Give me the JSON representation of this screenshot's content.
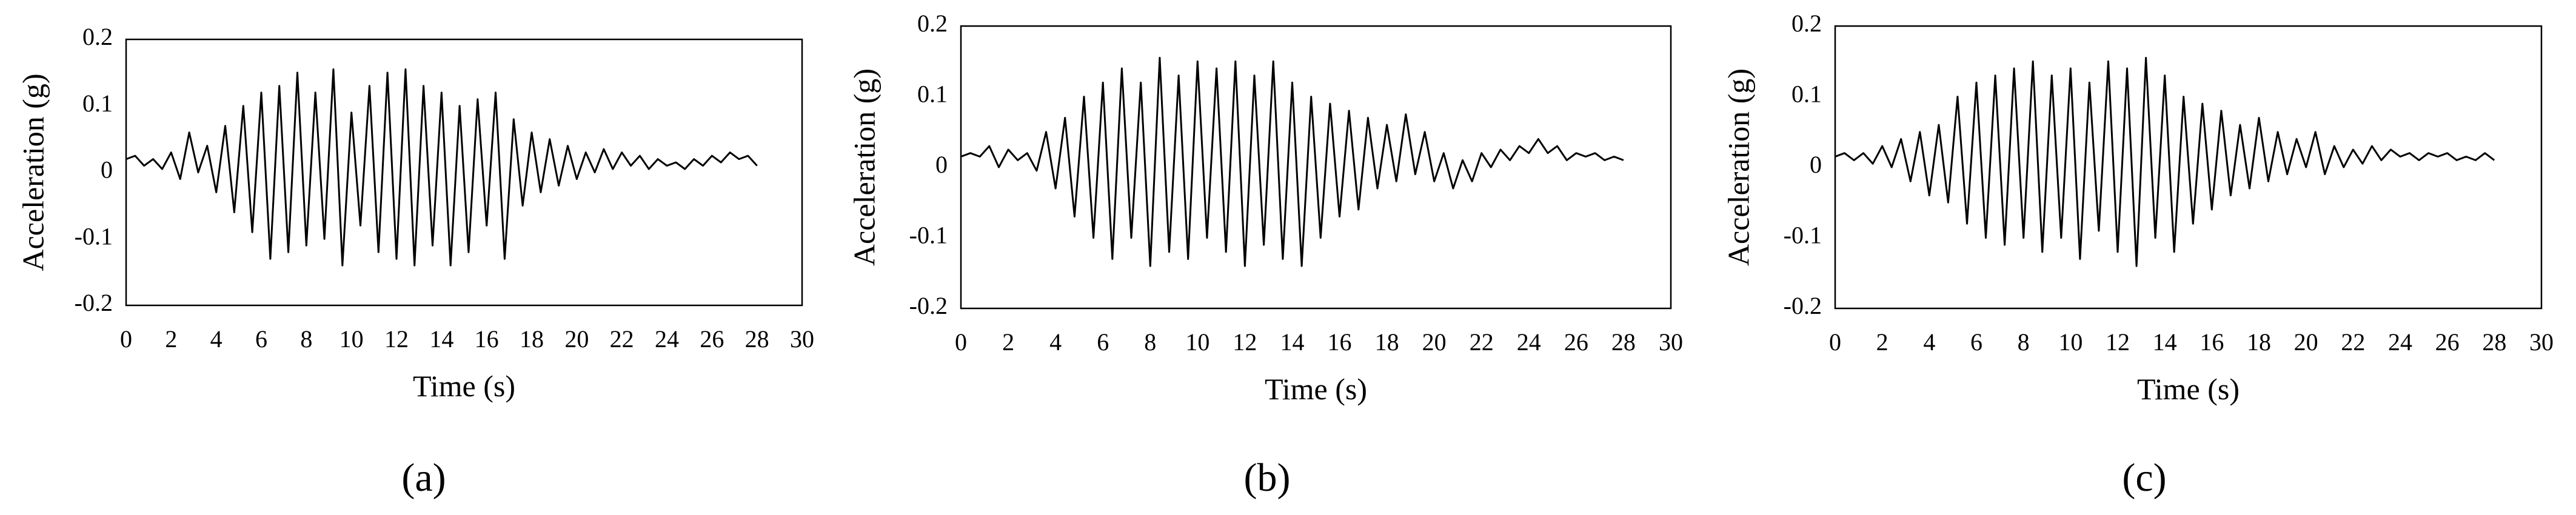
{
  "chart_data": [
    {
      "type": "line",
      "caption": "(a)",
      "xlabel": "Time (s)",
      "ylabel": "Acceleration (g)",
      "color": "#000000",
      "x": [
        0,
        0.4,
        0.8,
        1.2,
        1.6,
        2,
        2.4,
        2.8,
        3.2,
        3.6,
        4,
        4.4,
        4.8,
        5.2,
        5.6,
        6,
        6.4,
        6.8,
        7.2,
        7.6,
        8,
        8.4,
        8.8,
        9.2,
        9.6,
        10,
        10.4,
        10.8,
        11.2,
        11.6,
        12,
        12.4,
        12.8,
        13.2,
        13.6,
        14,
        14.4,
        14.8,
        15.2,
        15.6,
        16,
        16.4,
        16.8,
        17.2,
        17.6,
        18,
        18.4,
        18.8,
        19.2,
        19.6,
        20,
        20.4,
        20.8,
        21.2,
        21.6,
        22,
        22.4,
        22.8,
        23.2,
        23.6,
        24,
        24.4,
        24.8,
        25.2,
        25.6,
        26,
        26.4,
        26.8,
        27.2,
        27.6,
        28
      ],
      "values": [
        0.02,
        0.025,
        0.01,
        0.02,
        0.005,
        0.03,
        -0.01,
        0.06,
        0.0,
        0.04,
        -0.03,
        0.07,
        -0.06,
        0.1,
        -0.09,
        0.12,
        -0.13,
        0.13,
        -0.12,
        0.15,
        -0.11,
        0.12,
        -0.1,
        0.155,
        -0.14,
        0.09,
        -0.08,
        0.13,
        -0.12,
        0.15,
        -0.13,
        0.155,
        -0.14,
        0.13,
        -0.11,
        0.12,
        -0.14,
        0.1,
        -0.12,
        0.11,
        -0.08,
        0.12,
        -0.13,
        0.08,
        -0.05,
        0.06,
        -0.03,
        0.05,
        -0.02,
        0.04,
        -0.01,
        0.03,
        0.0,
        0.035,
        0.005,
        0.03,
        0.01,
        0.025,
        0.005,
        0.02,
        0.01,
        0.015,
        0.005,
        0.02,
        0.01,
        0.025,
        0.015,
        0.03,
        0.02,
        0.025,
        0.01
      ],
      "xlim": [
        0,
        30
      ],
      "xticks": [
        0,
        2,
        4,
        6,
        8,
        10,
        12,
        14,
        16,
        18,
        20,
        22,
        24,
        26,
        28,
        30
      ],
      "ylim": [
        -0.2,
        0.2
      ],
      "yticks": [
        -0.2,
        -0.1,
        0,
        0.1,
        0.2
      ]
    },
    {
      "type": "line",
      "caption": "(b)",
      "xlabel": "Time (s)",
      "ylabel": "Acceleration (g)",
      "color": "#000000",
      "x": [
        0,
        0.4,
        0.8,
        1.2,
        1.6,
        2,
        2.4,
        2.8,
        3.2,
        3.6,
        4,
        4.4,
        4.8,
        5.2,
        5.6,
        6,
        6.4,
        6.8,
        7.2,
        7.6,
        8,
        8.4,
        8.8,
        9.2,
        9.6,
        10,
        10.4,
        10.8,
        11.2,
        11.6,
        12,
        12.4,
        12.8,
        13.2,
        13.6,
        14,
        14.4,
        14.8,
        15.2,
        15.6,
        16,
        16.4,
        16.8,
        17.2,
        17.6,
        18,
        18.4,
        18.8,
        19.2,
        19.6,
        20,
        20.4,
        20.8,
        21.2,
        21.6,
        22,
        22.4,
        22.8,
        23.2,
        23.6,
        24,
        24.4,
        24.8,
        25.2,
        25.6,
        26,
        26.4,
        26.8,
        27.2,
        27.6,
        28
      ],
      "values": [
        0.015,
        0.02,
        0.015,
        0.03,
        0.0,
        0.025,
        0.01,
        0.02,
        -0.005,
        0.05,
        -0.03,
        0.07,
        -0.07,
        0.1,
        -0.1,
        0.12,
        -0.13,
        0.14,
        -0.1,
        0.12,
        -0.14,
        0.155,
        -0.12,
        0.13,
        -0.13,
        0.15,
        -0.1,
        0.14,
        -0.12,
        0.15,
        -0.14,
        0.13,
        -0.11,
        0.15,
        -0.13,
        0.12,
        -0.14,
        0.1,
        -0.1,
        0.09,
        -0.07,
        0.08,
        -0.06,
        0.07,
        -0.03,
        0.06,
        -0.02,
        0.075,
        -0.01,
        0.05,
        -0.02,
        0.02,
        -0.03,
        0.01,
        -0.02,
        0.02,
        0.0,
        0.025,
        0.01,
        0.03,
        0.02,
        0.04,
        0.02,
        0.03,
        0.01,
        0.02,
        0.015,
        0.02,
        0.01,
        0.015,
        0.01
      ],
      "xlim": [
        0,
        30
      ],
      "xticks": [
        0,
        2,
        4,
        6,
        8,
        10,
        12,
        14,
        16,
        18,
        20,
        22,
        24,
        26,
        28,
        30
      ],
      "ylim": [
        -0.2,
        0.2
      ],
      "yticks": [
        -0.2,
        -0.1,
        0,
        0.1,
        0.2
      ]
    },
    {
      "type": "line",
      "caption": "(c)",
      "xlabel": "Time (s)",
      "ylabel": "Acceleration (g)",
      "color": "#000000",
      "x": [
        0,
        0.4,
        0.8,
        1.2,
        1.6,
        2,
        2.4,
        2.8,
        3.2,
        3.6,
        4,
        4.4,
        4.8,
        5.2,
        5.6,
        6,
        6.4,
        6.8,
        7.2,
        7.6,
        8,
        8.4,
        8.8,
        9.2,
        9.6,
        10,
        10.4,
        10.8,
        11.2,
        11.6,
        12,
        12.4,
        12.8,
        13.2,
        13.6,
        14,
        14.4,
        14.8,
        15.2,
        15.6,
        16,
        16.4,
        16.8,
        17.2,
        17.6,
        18,
        18.4,
        18.8,
        19.2,
        19.6,
        20,
        20.4,
        20.8,
        21.2,
        21.6,
        22,
        22.4,
        22.8,
        23.2,
        23.6,
        24,
        24.4,
        24.8,
        25.2,
        25.6,
        26,
        26.4,
        26.8,
        27.2,
        27.6,
        28
      ],
      "values": [
        0.015,
        0.02,
        0.01,
        0.02,
        0.005,
        0.03,
        0.0,
        0.04,
        -0.02,
        0.05,
        -0.04,
        0.06,
        -0.05,
        0.1,
        -0.08,
        0.12,
        -0.1,
        0.13,
        -0.11,
        0.14,
        -0.1,
        0.15,
        -0.12,
        0.13,
        -0.1,
        0.14,
        -0.13,
        0.12,
        -0.09,
        0.15,
        -0.12,
        0.14,
        -0.14,
        0.155,
        -0.1,
        0.13,
        -0.12,
        0.1,
        -0.08,
        0.09,
        -0.06,
        0.08,
        -0.04,
        0.06,
        -0.03,
        0.07,
        -0.02,
        0.05,
        -0.01,
        0.04,
        0.0,
        0.05,
        -0.01,
        0.03,
        0.0,
        0.025,
        0.005,
        0.03,
        0.01,
        0.025,
        0.015,
        0.02,
        0.01,
        0.02,
        0.015,
        0.02,
        0.01,
        0.015,
        0.01,
        0.02,
        0.01
      ],
      "xlim": [
        0,
        30
      ],
      "xticks": [
        0,
        2,
        4,
        6,
        8,
        10,
        12,
        14,
        16,
        18,
        20,
        22,
        24,
        26,
        28,
        30
      ],
      "ylim": [
        -0.2,
        0.2
      ],
      "yticks": [
        -0.2,
        -0.1,
        0,
        0.1,
        0.2
      ]
    }
  ]
}
